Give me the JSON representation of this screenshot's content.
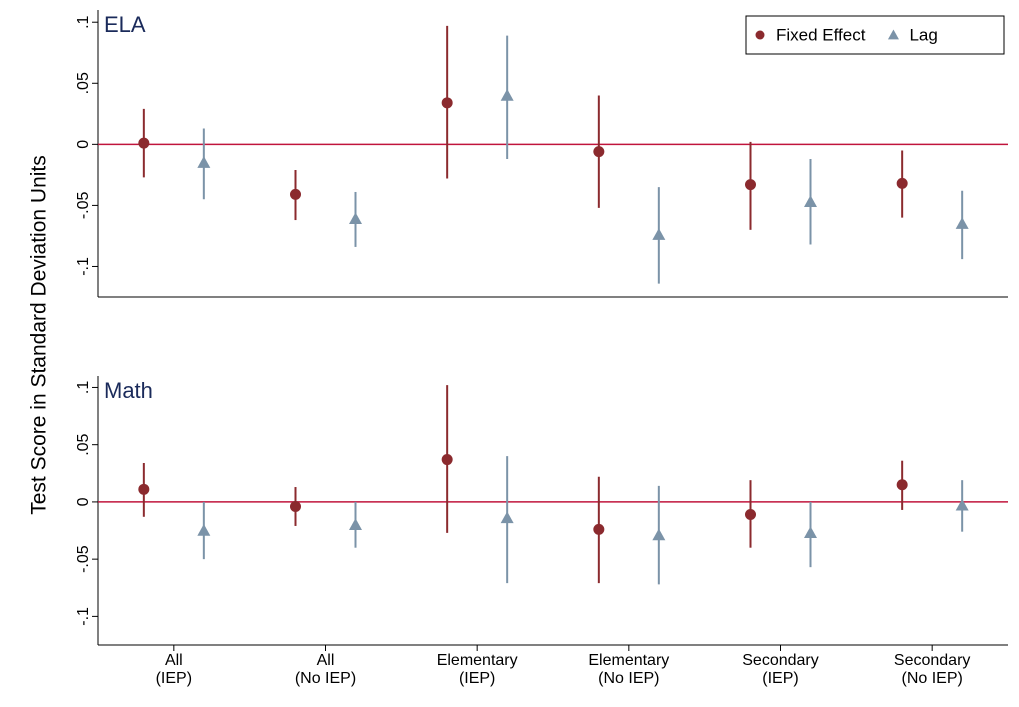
{
  "ylabel": "Test Score in Standard Deviation Units",
  "chart_data": [
    {
      "type": "errorbar",
      "title": "ELA",
      "legend": "upper right",
      "ylim": [
        -0.125,
        0.11
      ],
      "yticks": [
        {
          "value": 0.1,
          "label": ".1"
        },
        {
          "value": 0.05,
          "label": ".05"
        },
        0,
        {
          "value": -0.05,
          "label": "-.05"
        },
        {
          "value": -0.1,
          "label": "-.1"
        }
      ],
      "hline": 0,
      "hline_color": "#c0143c",
      "series": [
        {
          "name": "Fixed Effect",
          "marker": "circle",
          "color": "#8b2a2e",
          "values": [
            0.001,
            -0.041,
            0.034,
            -0.006,
            -0.033,
            -0.032
          ],
          "ci_low": [
            -0.027,
            -0.062,
            -0.028,
            -0.052,
            -0.07,
            -0.06
          ],
          "ci_high": [
            0.029,
            -0.021,
            0.097,
            0.04,
            0.002,
            -0.005
          ]
        },
        {
          "name": "Lag",
          "marker": "triangle",
          "color": "#7b93a8",
          "values": [
            -0.015,
            -0.061,
            0.04,
            -0.074,
            -0.047,
            -0.065
          ],
          "ci_low": [
            -0.045,
            -0.084,
            -0.012,
            -0.114,
            -0.082,
            -0.094
          ],
          "ci_high": [
            0.013,
            -0.039,
            0.089,
            -0.035,
            -0.012,
            -0.038
          ]
        }
      ]
    },
    {
      "type": "errorbar",
      "title": "Math",
      "ylim": [
        -0.125,
        0.11
      ],
      "yticks": [
        {
          "value": 0.1,
          "label": ".1"
        },
        {
          "value": 0.05,
          "label": ".05"
        },
        0,
        {
          "value": -0.05,
          "label": "-.05"
        },
        {
          "value": -0.1,
          "label": "-.1"
        }
      ],
      "hline": 0,
      "hline_color": "#c0143c",
      "categories": [
        "All\n(IEP)",
        "All\n(No IEP)",
        "Elementary\n(IEP)",
        "Elementary\n(No IEP)",
        "Secondary\n(IEP)",
        "Secondary\n(No IEP)"
      ],
      "series": [
        {
          "name": "Fixed Effect",
          "marker": "circle",
          "color": "#8b2a2e",
          "values": [
            0.011,
            -0.004,
            0.037,
            -0.024,
            -0.011,
            0.015
          ],
          "ci_low": [
            -0.013,
            -0.021,
            -0.027,
            -0.071,
            -0.04,
            -0.007
          ],
          "ci_high": [
            0.034,
            0.013,
            0.102,
            0.022,
            0.019,
            0.036
          ]
        },
        {
          "name": "Lag",
          "marker": "triangle",
          "color": "#7b93a8",
          "values": [
            -0.025,
            -0.02,
            -0.014,
            -0.029,
            -0.027,
            -0.003
          ],
          "ci_low": [
            -0.05,
            -0.04,
            -0.071,
            -0.072,
            -0.057,
            -0.026
          ],
          "ci_high": [
            0,
            0,
            0.04,
            0.014,
            0,
            0.019
          ]
        }
      ]
    }
  ]
}
